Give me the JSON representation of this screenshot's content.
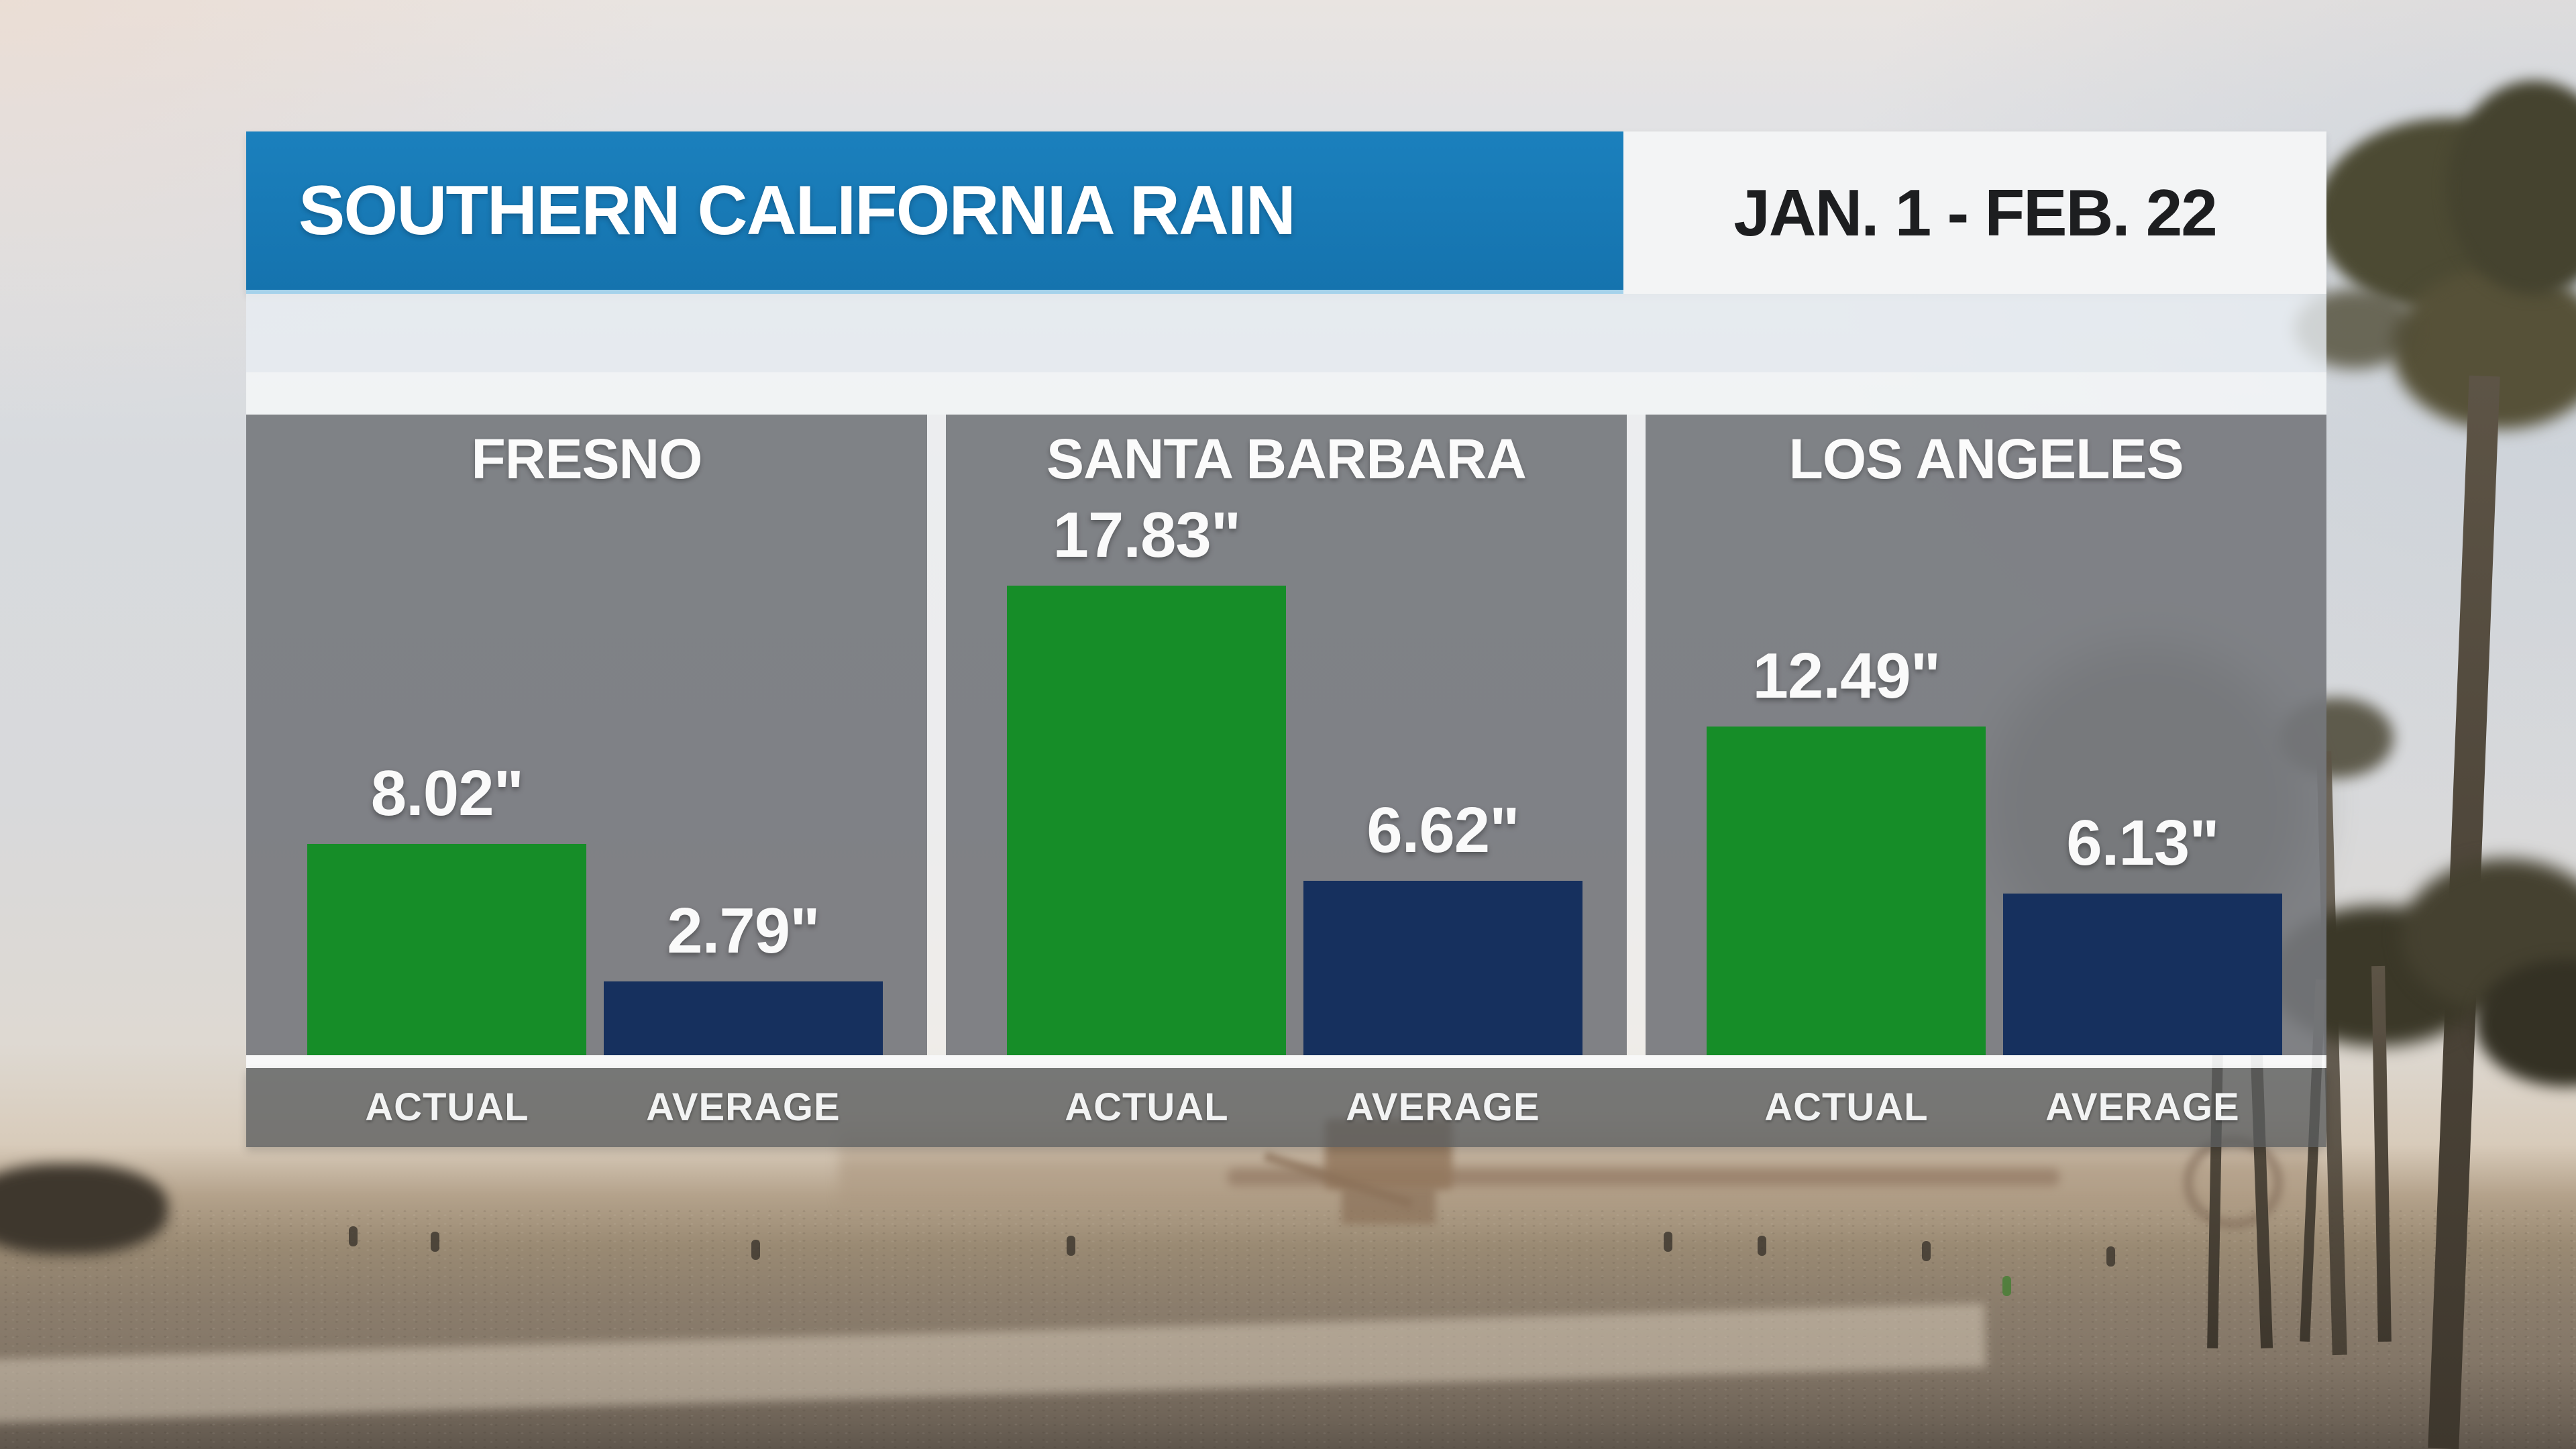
{
  "header": {
    "title": "SOUTHERN CALIFORNIA RAIN",
    "date_range": "JAN. 1 - FEB. 22"
  },
  "colors": {
    "header_blue": "#1878B4",
    "header_underline_blue": "#A5D2EB",
    "date_box_bg": "#F3F4F5",
    "date_text": "#1D1E20",
    "actual_green": "#168D28",
    "average_navy": "#16305E",
    "panel_gray": "rgba(100,103,107,0.80)",
    "axis_strip_gray": "rgba(90,92,94,0.78)",
    "text_white": "#FFFFFF"
  },
  "panels": [
    {
      "city": "FRESNO",
      "actual": 8.02,
      "average": 2.79,
      "actual_label": "8.02\"",
      "average_label": "2.79\"",
      "actual_axis": "ACTUAL",
      "average_axis": "AVERAGE"
    },
    {
      "city": "SANTA BARBARA",
      "actual": 17.83,
      "average": 6.62,
      "actual_label": "17.83\"",
      "average_label": "6.62\"",
      "actual_axis": "ACTUAL",
      "average_axis": "AVERAGE"
    },
    {
      "city": "LOS ANGELES",
      "actual": 12.49,
      "average": 6.13,
      "actual_label": "12.49\"",
      "average_label": "6.13\"",
      "actual_axis": "ACTUAL",
      "average_axis": "AVERAGE"
    }
  ],
  "chart_data": {
    "type": "bar",
    "title": "SOUTHERN CALIFORNIA RAIN",
    "period": "JAN. 1 - FEB. 22",
    "unit": "inches",
    "value_suffix": "\"",
    "categories": [
      "FRESNO",
      "SANTA BARBARA",
      "LOS ANGELES"
    ],
    "series": [
      {
        "name": "ACTUAL",
        "color": "#168D28",
        "values": [
          8.02,
          17.83,
          12.49
        ]
      },
      {
        "name": "AVERAGE",
        "color": "#16305E",
        "values": [
          2.79,
          6.62,
          6.13
        ]
      }
    ],
    "ylim": [
      0,
      18.5
    ],
    "grid": false,
    "legend_position": "below-each-bar"
  }
}
